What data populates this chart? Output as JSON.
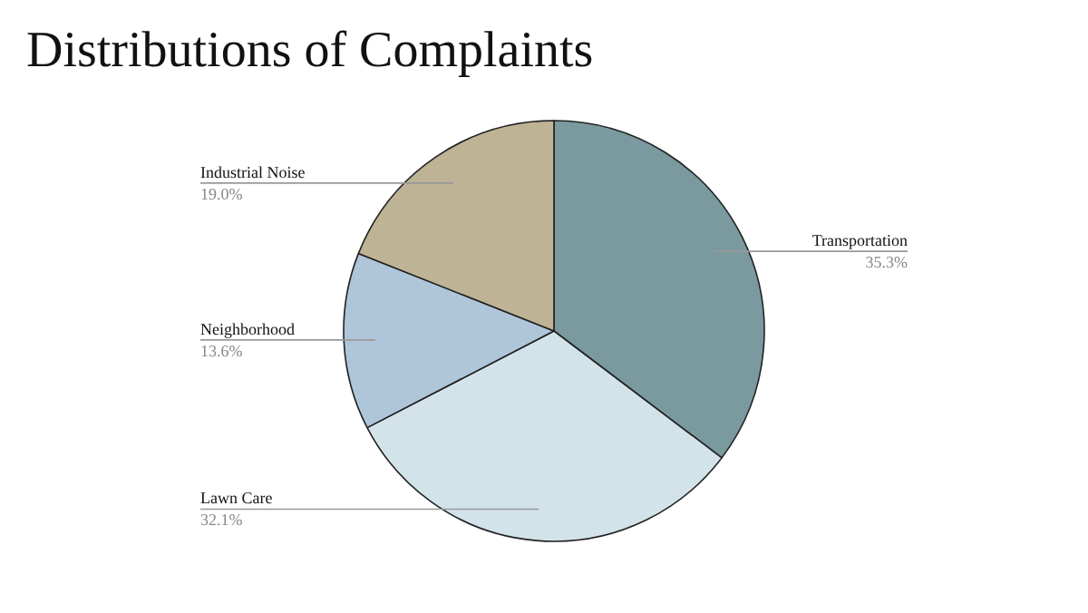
{
  "chart_data": {
    "type": "pie",
    "title": "Distributions of Complaints",
    "categories": [
      "Transportation",
      "Lawn Care",
      "Neighborhood",
      "Industrial Noise"
    ],
    "values": [
      35.3,
      32.1,
      13.6,
      19.0
    ],
    "value_labels": [
      "35.3%",
      "32.1%",
      "13.6%",
      "19.0%"
    ],
    "colors": [
      "#7a9aa0",
      "#d3e3ea",
      "#afc5d9",
      "#bfb396"
    ]
  }
}
